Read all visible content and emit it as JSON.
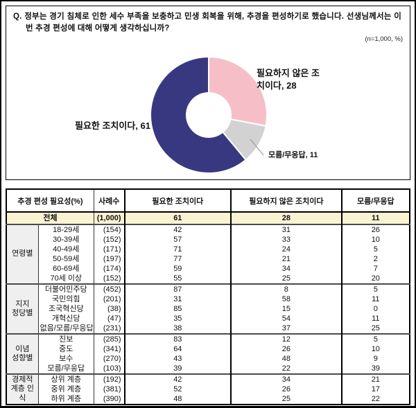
{
  "question": {
    "prefix": "Q.",
    "text": "정부는 경기 침체로 인한 세수 부족을 보충하고 민생 회복을 위해, 추경을 편성하기로 했습니다. 선생님께서는 이번 추경 편성에 대해 어떻게 생각하십니까?",
    "sample_note": "(n=1,000, %)"
  },
  "chart_data": [
    {
      "type": "pie",
      "subtype": "donut",
      "start": "12-o'clock, clockwise",
      "labels": [
        "필요하지 않은 조치이다",
        "모름/무응답",
        "필요한 조치이다"
      ],
      "values": [
        28,
        11,
        61
      ],
      "colors": [
        "#F6BFC7",
        "#D2D2D2",
        "#383881"
      ],
      "callouts": {
        "not_needed": "필요하지 않은 조치이다, 28",
        "needed": "필요한 조치이다, 61",
        "dont_know": "모름/무응답, 11"
      }
    },
    {
      "type": "table",
      "header": [
        "추경 편성 필요성(%)",
        "사례수",
        "필요한 조치이다",
        "필요하지 않은 조치이다",
        "모름/무응답"
      ],
      "total_row": {
        "label": "전체",
        "sample": "(1,000)",
        "values": [
          61,
          28,
          11
        ]
      },
      "groups": [
        {
          "label": "연령별",
          "rows": [
            {
              "category": "18-29세",
              "sample": "(154)",
              "values": [
                42,
                31,
                26
              ]
            },
            {
              "category": "30-39세",
              "sample": "(152)",
              "values": [
                57,
                33,
                10
              ]
            },
            {
              "category": "40-49세",
              "sample": "(171)",
              "values": [
                71,
                24,
                5
              ]
            },
            {
              "category": "50-59세",
              "sample": "(197)",
              "values": [
                77,
                21,
                2
              ]
            },
            {
              "category": "60-69세",
              "sample": "(174)",
              "values": [
                59,
                34,
                7
              ]
            },
            {
              "category": "70세 이상",
              "sample": "(152)",
              "values": [
                55,
                25,
                20
              ]
            }
          ]
        },
        {
          "label": "지지\n정당별",
          "rows": [
            {
              "category": "더불어민주당",
              "sample": "(452)",
              "values": [
                87,
                8,
                5
              ]
            },
            {
              "category": "국민의힘",
              "sample": "(201)",
              "values": [
                31,
                58,
                11
              ]
            },
            {
              "category": "조국혁신당",
              "sample": "(38)",
              "values": [
                85,
                15,
                0
              ]
            },
            {
              "category": "개혁신당",
              "sample": "(47)",
              "values": [
                35,
                54,
                11
              ]
            },
            {
              "category": "없음/모름/무응답",
              "sample": "(231)",
              "values": [
                38,
                37,
                25
              ]
            }
          ]
        },
        {
          "label": "이념\n성향별",
          "rows": [
            {
              "category": "진보",
              "sample": "(285)",
              "values": [
                83,
                12,
                5
              ]
            },
            {
              "category": "중도",
              "sample": "(341)",
              "values": [
                64,
                26,
                10
              ]
            },
            {
              "category": "보수",
              "sample": "(270)",
              "values": [
                43,
                48,
                9
              ]
            },
            {
              "category": "모름/무응답",
              "sample": "(103)",
              "values": [
                39,
                22,
                39
              ]
            }
          ]
        },
        {
          "label": "경제적\n계층 인식",
          "rows": [
            {
              "category": "상위 계층",
              "sample": "(192)",
              "values": [
                42,
                34,
                21
              ]
            },
            {
              "category": "중위 계층",
              "sample": "(381)",
              "values": [
                52,
                26,
                17
              ]
            },
            {
              "category": "하위 계층",
              "sample": "(390)",
              "values": [
                48,
                25,
                22
              ]
            }
          ]
        }
      ]
    }
  ]
}
